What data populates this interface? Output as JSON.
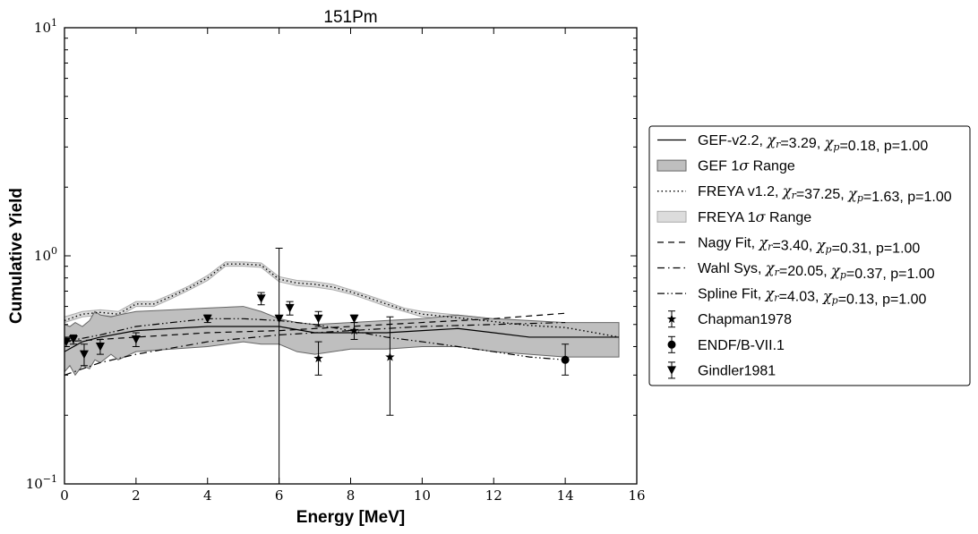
{
  "chart_data": {
    "type": "line",
    "title": "151Pm",
    "xlabel": "Energy [MeV]",
    "ylabel": "Cumulative Yield",
    "xlim": [
      0,
      16
    ],
    "ylim": [
      0.1,
      10
    ],
    "yscale": "log",
    "xticks": [
      "0",
      "2",
      "4",
      "6",
      "8",
      "10",
      "12",
      "14",
      "16"
    ],
    "ytick_labels": [
      {
        "base": "10",
        "exp": "1",
        "value": 10
      },
      {
        "base": "10",
        "exp": "0",
        "value": 1
      },
      {
        "base": "10",
        "exp": "−1",
        "value": 0.1
      }
    ],
    "grid": false,
    "legend_position": "outside-right",
    "bands": [
      {
        "name": "GEF 1σ Range",
        "fill": "#bfbfbf",
        "edge": "#666666",
        "x": [
          0,
          0.15,
          0.3,
          0.5,
          0.7,
          0.85,
          1,
          1.3,
          1.5,
          2,
          3,
          4,
          5,
          5.5,
          6,
          6.5,
          7,
          8,
          9,
          10,
          11,
          12,
          13,
          14,
          15.5
        ],
        "upper": [
          0.5,
          0.49,
          0.51,
          0.49,
          0.52,
          0.57,
          0.55,
          0.54,
          0.55,
          0.57,
          0.58,
          0.59,
          0.6,
          0.57,
          0.53,
          0.51,
          0.5,
          0.51,
          0.52,
          0.53,
          0.55,
          0.53,
          0.52,
          0.51,
          0.51
        ],
        "lower": [
          0.31,
          0.33,
          0.3,
          0.33,
          0.32,
          0.35,
          0.34,
          0.37,
          0.35,
          0.38,
          0.39,
          0.4,
          0.42,
          0.41,
          0.41,
          0.38,
          0.37,
          0.39,
          0.39,
          0.4,
          0.4,
          0.38,
          0.37,
          0.36,
          0.36
        ]
      },
      {
        "name": "FREYA 1σ Range",
        "fill": "#dcdcdc",
        "edge": "#aaaaaa",
        "x": [
          0,
          0.5,
          1,
          1.5,
          2,
          2.5,
          3,
          3.5,
          4,
          4.5,
          5,
          5.5,
          6,
          6.5,
          7,
          7.5,
          8,
          8.5,
          9,
          9.5,
          10,
          11,
          12,
          13,
          14,
          15,
          15.5
        ],
        "upper": [
          0.54,
          0.57,
          0.58,
          0.57,
          0.63,
          0.63,
          0.68,
          0.74,
          0.82,
          0.94,
          0.94,
          0.93,
          0.81,
          0.78,
          0.77,
          0.75,
          0.71,
          0.67,
          0.63,
          0.59,
          0.57,
          0.55,
          0.53,
          0.51,
          0.5,
          0.47,
          0.45
        ],
        "lower": [
          0.51,
          0.54,
          0.55,
          0.54,
          0.6,
          0.6,
          0.65,
          0.71,
          0.78,
          0.9,
          0.9,
          0.89,
          0.77,
          0.74,
          0.73,
          0.71,
          0.68,
          0.64,
          0.6,
          0.57,
          0.54,
          0.52,
          0.5,
          0.48,
          0.47,
          0.44,
          0.43
        ]
      }
    ],
    "series": [
      {
        "name": "GEF-v2.2, χr=3.29, χp=0.18, p=1.00",
        "style": "solid",
        "x": [
          0,
          0.5,
          1,
          2,
          3,
          4,
          5,
          6,
          7,
          8,
          9,
          10,
          11,
          12,
          13,
          14,
          15.5
        ],
        "values": [
          0.38,
          0.42,
          0.44,
          0.47,
          0.48,
          0.49,
          0.49,
          0.49,
          0.46,
          0.46,
          0.46,
          0.47,
          0.48,
          0.46,
          0.44,
          0.44,
          0.44
        ]
      },
      {
        "name": "FREYA v1.2, χr=37.25, χp=1.63, p=1.00",
        "style": "dotted",
        "x": [
          0,
          0.5,
          1,
          1.5,
          2,
          2.5,
          3,
          3.5,
          4,
          4.5,
          5,
          5.5,
          6,
          6.5,
          7,
          7.5,
          8,
          8.5,
          9,
          9.5,
          10,
          11,
          12,
          13,
          14,
          15,
          15.5
        ],
        "values": [
          0.52,
          0.555,
          0.565,
          0.555,
          0.615,
          0.615,
          0.665,
          0.725,
          0.8,
          0.92,
          0.92,
          0.91,
          0.79,
          0.76,
          0.75,
          0.73,
          0.695,
          0.655,
          0.615,
          0.58,
          0.555,
          0.535,
          0.515,
          0.495,
          0.485,
          0.455,
          0.44
        ]
      },
      {
        "name": "Nagy Fit, χr=3.40, χp=0.31, p=1.00",
        "style": "dashed",
        "x": [
          0,
          1,
          2,
          4,
          6,
          8,
          10,
          12,
          14
        ],
        "values": [
          0.42,
          0.43,
          0.44,
          0.46,
          0.47,
          0.49,
          0.51,
          0.53,
          0.56
        ]
      },
      {
        "name": "Wahl Sys, χr=20.05, χp=0.37, p=1.00",
        "style": "dashdot",
        "x": [
          0,
          1,
          2,
          4,
          6,
          8,
          10,
          12,
          14
        ],
        "values": [
          0.3,
          0.34,
          0.37,
          0.42,
          0.45,
          0.47,
          0.49,
          0.5,
          0.51
        ]
      },
      {
        "name": "Spline Fit, χr=4.03, χp=0.13, p=1.00",
        "style": "dashdotdot",
        "x": [
          0,
          1,
          2,
          3,
          4,
          5,
          6,
          7,
          8,
          9,
          10,
          11,
          12,
          13,
          14
        ],
        "values": [
          0.42,
          0.45,
          0.49,
          0.51,
          0.53,
          0.53,
          0.52,
          0.5,
          0.47,
          0.44,
          0.42,
          0.4,
          0.38,
          0.36,
          0.35
        ]
      }
    ],
    "points": [
      {
        "name": "Chapman1978",
        "marker": "star",
        "data": [
          {
            "x": 7.1,
            "y": 0.355,
            "lo": 0.3,
            "hi": 0.42
          },
          {
            "x": 8.1,
            "y": 0.47,
            "lo": 0.43,
            "hi": 0.51
          },
          {
            "x": 9.1,
            "y": 0.36,
            "lo": 0.2,
            "hi": 0.54
          }
        ]
      },
      {
        "name": "ENDF/B-VII.1",
        "marker": "circle",
        "data": [
          {
            "x": 14.0,
            "y": 0.35,
            "lo": 0.3,
            "hi": 0.41
          }
        ]
      },
      {
        "name": "Gindler1981",
        "marker": "triangle-down",
        "data": [
          {
            "x": 0.05,
            "y": 0.42,
            "lo": 0.4,
            "hi": 0.44
          },
          {
            "x": 0.25,
            "y": 0.43,
            "lo": 0.41,
            "hi": 0.45
          },
          {
            "x": 0.55,
            "y": 0.37,
            "lo": 0.33,
            "hi": 0.41
          },
          {
            "x": 1.0,
            "y": 0.4,
            "lo": 0.37,
            "hi": 0.43
          },
          {
            "x": 2.0,
            "y": 0.43,
            "lo": 0.4,
            "hi": 0.46
          },
          {
            "x": 4.0,
            "y": 0.53,
            "lo": 0.51,
            "hi": 0.55
          },
          {
            "x": 5.5,
            "y": 0.65,
            "lo": 0.61,
            "hi": 0.69
          },
          {
            "x": 6.0,
            "y": 0.53,
            "lo": 0.1,
            "hi": 1.08
          },
          {
            "x": 6.3,
            "y": 0.59,
            "lo": 0.55,
            "hi": 0.63
          },
          {
            "x": 7.1,
            "y": 0.53,
            "lo": 0.49,
            "hi": 0.57
          },
          {
            "x": 8.1,
            "y": 0.53,
            "lo": 0.51,
            "hi": 0.55
          }
        ]
      }
    ],
    "legend": [
      {
        "kind": "line",
        "style": "solid",
        "parts": [
          [
            "GEF-v2.2, ",
            "t"
          ],
          [
            "χ",
            "m"
          ],
          [
            "r",
            "s"
          ],
          [
            "=3.29, ",
            "t"
          ],
          [
            "χ",
            "m"
          ],
          [
            "p",
            "s"
          ],
          [
            "=0.18, p=1.00",
            "t"
          ]
        ]
      },
      {
        "kind": "patch",
        "fill": "#bfbfbf",
        "edge": "#666666",
        "parts": [
          [
            "GEF 1",
            "t"
          ],
          [
            "σ",
            "m"
          ],
          [
            " Range",
            "t"
          ]
        ]
      },
      {
        "kind": "line",
        "style": "dotted",
        "parts": [
          [
            "FREYA v1.2, ",
            "t"
          ],
          [
            "χ",
            "m"
          ],
          [
            "r",
            "s"
          ],
          [
            "=37.25, ",
            "t"
          ],
          [
            "χ",
            "m"
          ],
          [
            "p",
            "s"
          ],
          [
            "=1.63, p=1.00",
            "t"
          ]
        ]
      },
      {
        "kind": "patch",
        "fill": "#dcdcdc",
        "edge": "#aaaaaa",
        "parts": [
          [
            "FREYA 1",
            "t"
          ],
          [
            "σ",
            "m"
          ],
          [
            " Range",
            "t"
          ]
        ]
      },
      {
        "kind": "line",
        "style": "dashed",
        "parts": [
          [
            "Nagy Fit, ",
            "t"
          ],
          [
            "χ",
            "m"
          ],
          [
            "r",
            "s"
          ],
          [
            "=3.40, ",
            "t"
          ],
          [
            "χ",
            "m"
          ],
          [
            "p",
            "s"
          ],
          [
            "=0.31, p=1.00",
            "t"
          ]
        ]
      },
      {
        "kind": "line",
        "style": "dashdot",
        "parts": [
          [
            "Wahl Sys, ",
            "t"
          ],
          [
            "χ",
            "m"
          ],
          [
            "r",
            "s"
          ],
          [
            "=20.05, ",
            "t"
          ],
          [
            "χ",
            "m"
          ],
          [
            "p",
            "s"
          ],
          [
            "=0.37, p=1.00",
            "t"
          ]
        ]
      },
      {
        "kind": "line",
        "style": "dashdotdot",
        "parts": [
          [
            "Spline Fit, ",
            "t"
          ],
          [
            "χ",
            "m"
          ],
          [
            "r",
            "s"
          ],
          [
            "=4.03, ",
            "t"
          ],
          [
            "χ",
            "m"
          ],
          [
            "p",
            "s"
          ],
          [
            "=0.13, p=1.00",
            "t"
          ]
        ]
      },
      {
        "kind": "marker",
        "marker": "star",
        "parts": [
          [
            "Chapman1978",
            "t"
          ]
        ]
      },
      {
        "kind": "marker",
        "marker": "circle",
        "parts": [
          [
            "ENDF/B-VII.1",
            "t"
          ]
        ]
      },
      {
        "kind": "marker",
        "marker": "triangle-down",
        "parts": [
          [
            "Gindler1981",
            "t"
          ]
        ]
      }
    ]
  }
}
